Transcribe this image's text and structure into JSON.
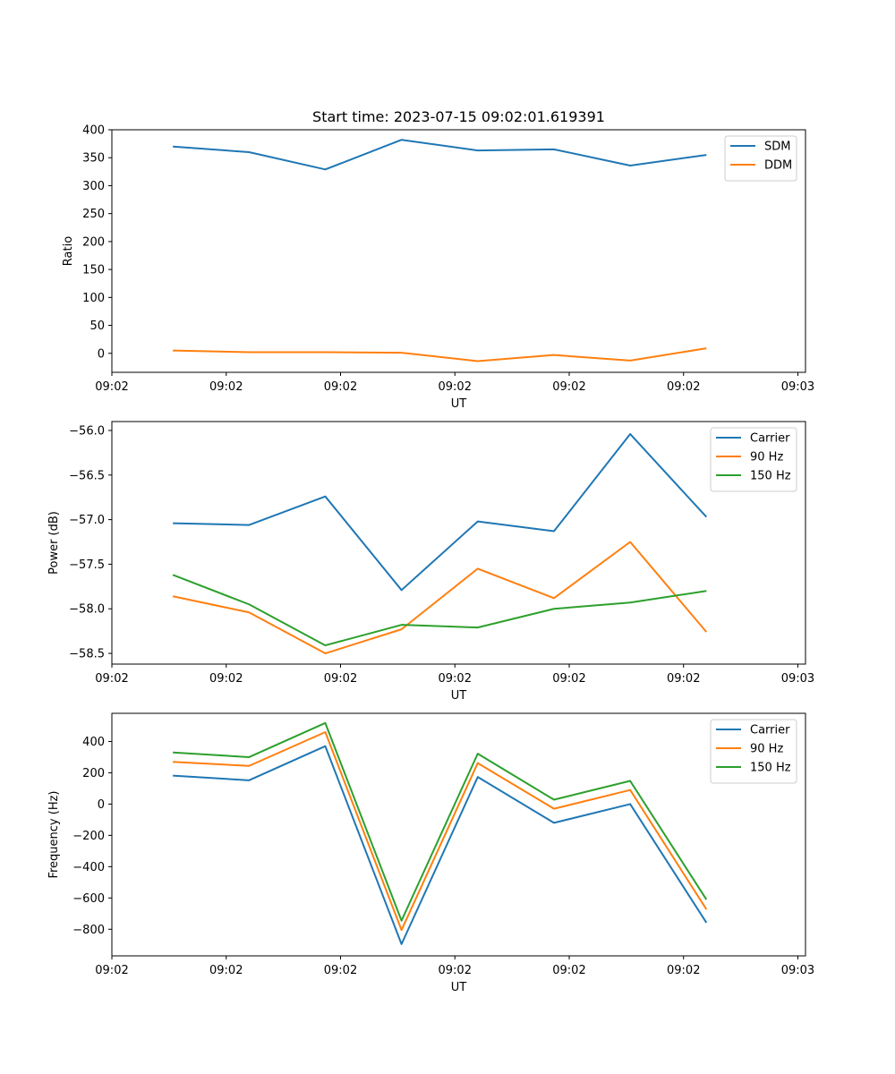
{
  "figure": {
    "title": "Start time: 2023-07-15 09:02:01.619391"
  },
  "colors": {
    "blue": "#1f77b4",
    "orange": "#ff7f0e",
    "green": "#2ca02c"
  },
  "chart_data": [
    {
      "type": "line",
      "title": "Start time: 2023-07-15 09:02:01.619391",
      "xlabel": "UT",
      "ylabel": "Ratio",
      "x_tick_labels": [
        "09:02",
        "09:02",
        "09:02",
        "09:02",
        "09:02",
        "09:02",
        "09:03"
      ],
      "x_points": [
        1,
        2,
        3,
        4,
        5,
        6,
        7,
        8
      ],
      "xlim": [
        0.2,
        9.3
      ],
      "x_tick_positions": [
        0.2,
        1.7,
        3.2,
        4.7,
        6.2,
        7.7,
        9.2
      ],
      "ylim": [
        -34,
        400
      ],
      "y_ticks": [
        0,
        50,
        100,
        150,
        200,
        250,
        300,
        350,
        400
      ],
      "legend": "top-right",
      "series": [
        {
          "name": "SDM",
          "color": "blue",
          "values": [
            370,
            360,
            329,
            382,
            363,
            365,
            336,
            355
          ]
        },
        {
          "name": "DDM",
          "color": "orange",
          "values": [
            5,
            2,
            2,
            1,
            -14,
            -3,
            -13,
            9
          ]
        }
      ]
    },
    {
      "type": "line",
      "xlabel": "UT",
      "ylabel": "Power (dB)",
      "x_tick_labels": [
        "09:02",
        "09:02",
        "09:02",
        "09:02",
        "09:02",
        "09:02",
        "09:03"
      ],
      "x_points": [
        1,
        2,
        3,
        4,
        5,
        6,
        7,
        8
      ],
      "xlim": [
        0.2,
        9.3
      ],
      "x_tick_positions": [
        0.2,
        1.7,
        3.2,
        4.7,
        6.2,
        7.7,
        9.2
      ],
      "ylim": [
        -58.62,
        -55.9
      ],
      "y_ticks": [
        -58.5,
        -58.0,
        -57.5,
        -57.0,
        -56.5,
        -56.0
      ],
      "y_tick_labels": [
        "−58.5",
        "−58.0",
        "−57.5",
        "−57.0",
        "−56.5",
        "−56.0"
      ],
      "legend": "top-right",
      "series": [
        {
          "name": "Carrier",
          "color": "blue",
          "values": [
            -57.04,
            -57.06,
            -56.74,
            -57.79,
            -57.02,
            -57.13,
            -56.04,
            -56.97
          ]
        },
        {
          "name": "90 Hz",
          "color": "orange",
          "values": [
            -57.86,
            -58.04,
            -58.5,
            -58.23,
            -57.55,
            -57.88,
            -57.25,
            -58.26
          ]
        },
        {
          "name": "150 Hz",
          "color": "green",
          "values": [
            -57.62,
            -57.95,
            -58.41,
            -58.18,
            -58.21,
            -58.0,
            -57.93,
            -57.8
          ]
        }
      ]
    },
    {
      "type": "line",
      "xlabel": "UT",
      "ylabel": "Frequency (Hz)",
      "x_tick_labels": [
        "09:02",
        "09:02",
        "09:02",
        "09:02",
        "09:02",
        "09:02",
        "09:03"
      ],
      "x_points": [
        1,
        2,
        3,
        4,
        5,
        6,
        7,
        8
      ],
      "xlim": [
        0.2,
        9.3
      ],
      "x_tick_positions": [
        0.2,
        1.7,
        3.2,
        4.7,
        6.2,
        7.7,
        9.2
      ],
      "ylim": [
        -970,
        580
      ],
      "y_ticks": [
        -800,
        -600,
        -400,
        -200,
        0,
        200,
        400
      ],
      "y_tick_labels": [
        "−800",
        "−600",
        "−400",
        "−200",
        "0",
        "200",
        "400"
      ],
      "legend": "top-right",
      "series": [
        {
          "name": "Carrier",
          "color": "blue",
          "values": [
            182,
            152,
            370,
            -895,
            173,
            -120,
            0,
            -758
          ]
        },
        {
          "name": "90 Hz",
          "color": "orange",
          "values": [
            270,
            244,
            460,
            -805,
            262,
            -30,
            90,
            -673
          ]
        },
        {
          "name": "150 Hz",
          "color": "green",
          "values": [
            330,
            300,
            518,
            -745,
            322,
            28,
            148,
            -610
          ]
        }
      ]
    }
  ]
}
